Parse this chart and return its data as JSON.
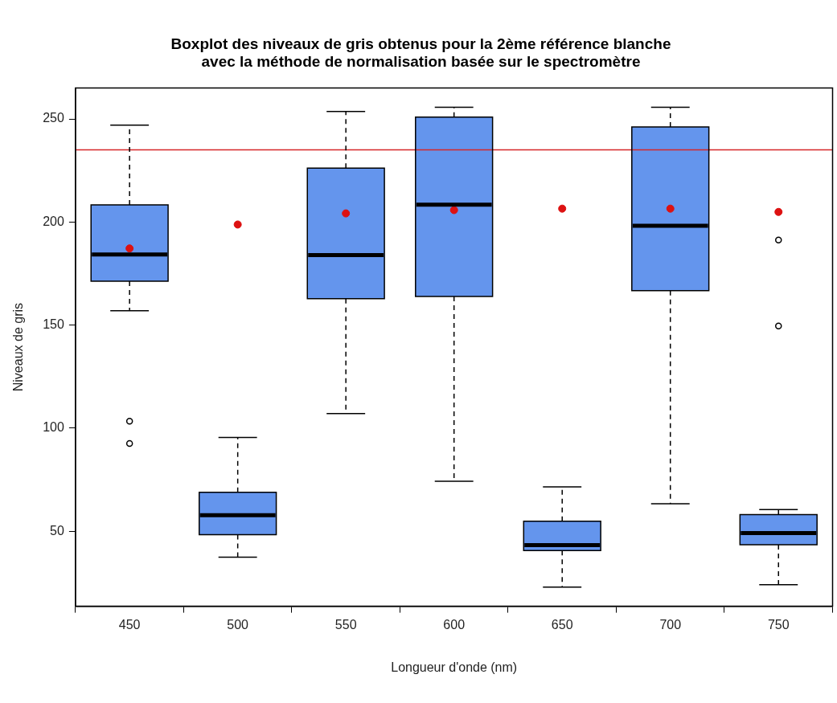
{
  "chart_data": {
    "type": "box",
    "title": "Boxplot des niveaux de gris obtenus pour la 2ème référence blanche\navec la méthode de normalisation basée sur le spectromètre",
    "xlabel": "Longueur d'onde (nm)",
    "ylabel": "Niveaux de gris",
    "categories": [
      "450",
      "500",
      "550",
      "600",
      "650",
      "700",
      "750"
    ],
    "ylim": [
      13.6,
      265
    ],
    "yticks": [
      50,
      100,
      150,
      200,
      250
    ],
    "grid": false,
    "legend": false,
    "series": [
      {
        "color": "#6495ed",
        "boxes": [
          {
            "low": 157,
            "q1": 171.3,
            "median": 184.3,
            "q3": 208.3,
            "high": 247,
            "outliers": [
              103.4,
              92.6
            ]
          },
          {
            "low": 37.4,
            "q1": 48.3,
            "median": 57.8,
            "q3": 68.9,
            "high": 95.5
          },
          {
            "low": 107.1,
            "q1": 162.8,
            "median": 184,
            "q3": 226.2,
            "high": 253.6
          },
          {
            "low": 74.2,
            "q1": 163.9,
            "median": 208.4,
            "q3": 250.9,
            "high": 255.7
          },
          {
            "low": 22.9,
            "q1": 40.6,
            "median": 43.3,
            "q3": 54.9,
            "high": 71.5
          },
          {
            "low": 63.3,
            "q1": 166.7,
            "median": 198.2,
            "q3": 246.1,
            "high": 255.7
          },
          {
            "low": 24.1,
            "q1": 43.5,
            "median": 49.1,
            "q3": 58.1,
            "high": 60.5,
            "outliers": [
              191.3,
              149.6
            ]
          }
        ]
      },
      {
        "type": "scatter",
        "color": "#dd1111",
        "marker": "circle",
        "x": [
          "450",
          "500",
          "550",
          "600",
          "650",
          "700",
          "750"
        ],
        "values": [
          187.2,
          198.8,
          204.2,
          205.8,
          206.5,
          206.5,
          204.9
        ]
      }
    ],
    "ref_lines": [
      {
        "axis": "y",
        "value": 235,
        "color": "#d62728",
        "line_style": "solid"
      }
    ]
  }
}
